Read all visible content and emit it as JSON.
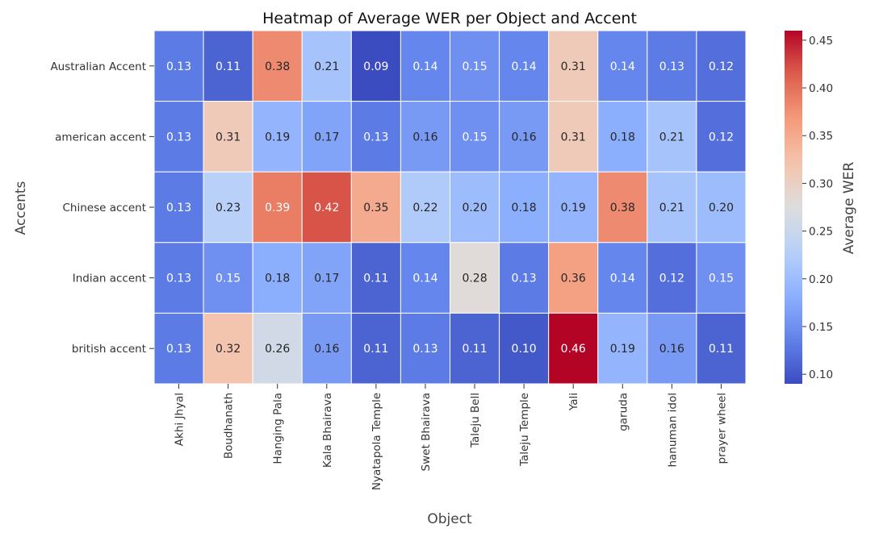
{
  "chart_data": {
    "type": "heatmap",
    "title": "Heatmap of Average WER per Object and Accent",
    "xlabel": "Object",
    "ylabel": "Accents",
    "colorbar_label": "Average WER",
    "colormap": "coolwarm",
    "value_range": [
      0.09,
      0.46
    ],
    "colorbar_ticks": [
      "0.10",
      "0.15",
      "0.20",
      "0.25",
      "0.30",
      "0.35",
      "0.40",
      "0.45"
    ],
    "x_categories": [
      "Akhi Jhyal",
      "Boudhanath",
      "Hanging Pala",
      "Kala Bhairava",
      "Nyatapola Temple",
      "Swet Bhairava",
      "Taleju Bell",
      "Taleju Temple",
      "Yali",
      "garuda",
      "hanuman idol",
      "prayer wheel"
    ],
    "y_categories": [
      "Australian Accent",
      "american accent",
      "Chinese accent",
      "Indian accent",
      "british accent"
    ],
    "values": [
      [
        0.13,
        0.11,
        0.38,
        0.21,
        0.09,
        0.14,
        0.15,
        0.14,
        0.31,
        0.14,
        0.13,
        0.12
      ],
      [
        0.13,
        0.31,
        0.19,
        0.17,
        0.13,
        0.16,
        0.15,
        0.16,
        0.31,
        0.18,
        0.21,
        0.12
      ],
      [
        0.13,
        0.23,
        0.39,
        0.42,
        0.35,
        0.22,
        0.2,
        0.18,
        0.19,
        0.38,
        0.21,
        0.2
      ],
      [
        0.13,
        0.15,
        0.18,
        0.17,
        0.11,
        0.14,
        0.28,
        0.13,
        0.36,
        0.14,
        0.12,
        0.15
      ],
      [
        0.13,
        0.32,
        0.26,
        0.16,
        0.11,
        0.13,
        0.11,
        0.1,
        0.46,
        0.19,
        0.16,
        0.11
      ]
    ],
    "grid": false
  }
}
